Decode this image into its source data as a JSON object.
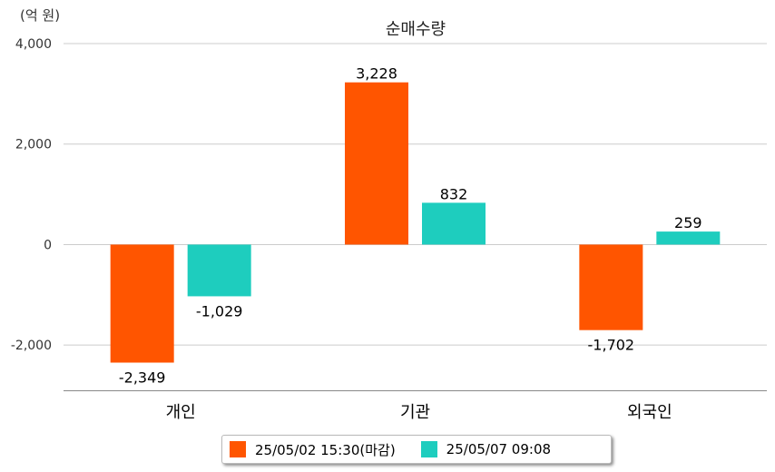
{
  "unit_label": "(억 원)",
  "chart_data": {
    "type": "bar",
    "title": "순매수량",
    "categories": [
      "개인",
      "기관",
      "외국인"
    ],
    "series": [
      {
        "name": "25/05/02 15:30(마감)",
        "values": [
          -2349,
          3228,
          -1702
        ],
        "color": "#ff5500"
      },
      {
        "name": "25/05/07 09:08",
        "values": [
          -1029,
          832,
          259
        ],
        "color": "#1ecdbe"
      }
    ],
    "data_labels": [
      [
        "-2,349",
        "3,228",
        "-1,702"
      ],
      [
        "-1,029",
        "832",
        "259"
      ]
    ],
    "y_ticks": [
      4000,
      2000,
      0,
      -2000
    ],
    "y_tick_labels": [
      "4,000",
      "2,000",
      "0",
      "-2,000"
    ],
    "ylim": [
      -2900,
      4000
    ],
    "grid": true,
    "legend_position": "bottom"
  }
}
